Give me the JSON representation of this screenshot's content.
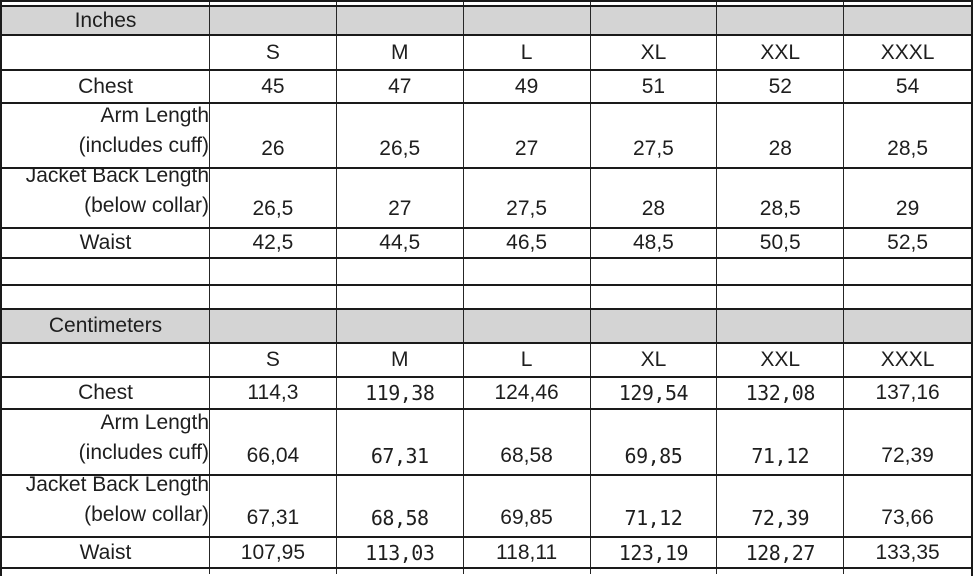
{
  "sections": [
    {
      "title": "Inches",
      "sizes": [
        "S",
        "M",
        "L",
        "XL",
        "XXL",
        "XXXL"
      ],
      "rows": [
        {
          "label": "Chest",
          "values": [
            "45",
            "47",
            "49",
            "51",
            "52",
            "54"
          ]
        },
        {
          "label": "Arm Length",
          "label2": "(includes cuff)",
          "values": [
            "26",
            "26,5",
            "27",
            "27,5",
            "28",
            "28,5"
          ]
        },
        {
          "label": "Jacket Back Length",
          "label2": "(below collar)",
          "values": [
            "26,5",
            "27",
            "27,5",
            "28",
            "28,5",
            "29"
          ]
        },
        {
          "label": "Waist",
          "values": [
            "42,5",
            "44,5",
            "46,5",
            "48,5",
            "50,5",
            "52,5"
          ]
        }
      ]
    },
    {
      "title": "Centimeters",
      "sizes": [
        "S",
        "M",
        "L",
        "XL",
        "XXL",
        "XXXL"
      ],
      "rows": [
        {
          "label": "Chest",
          "values": [
            "114,3",
            "119,38",
            "124,46",
            "129,54",
            "132,08",
            "137,16"
          ]
        },
        {
          "label": "Arm Length",
          "label2": "(includes cuff)",
          "values": [
            "66,04",
            "67,31",
            "68,58",
            "69,85",
            "71,12",
            "72,39"
          ]
        },
        {
          "label": "Jacket Back Length",
          "label2": "(below collar)",
          "values": [
            "67,31",
            "68,58",
            "69,85",
            "71,12",
            "72,39",
            "73,66"
          ]
        },
        {
          "label": "Waist",
          "values": [
            "107,95",
            "113,03",
            "118,11",
            "123,19",
            "128,27",
            "133,35"
          ]
        }
      ],
      "mono_columns": [
        1,
        3,
        4
      ]
    }
  ],
  "colors": {
    "header_bg": "#d4d4d4",
    "border": "#1a1a1a",
    "text": "#1e1e1e"
  }
}
